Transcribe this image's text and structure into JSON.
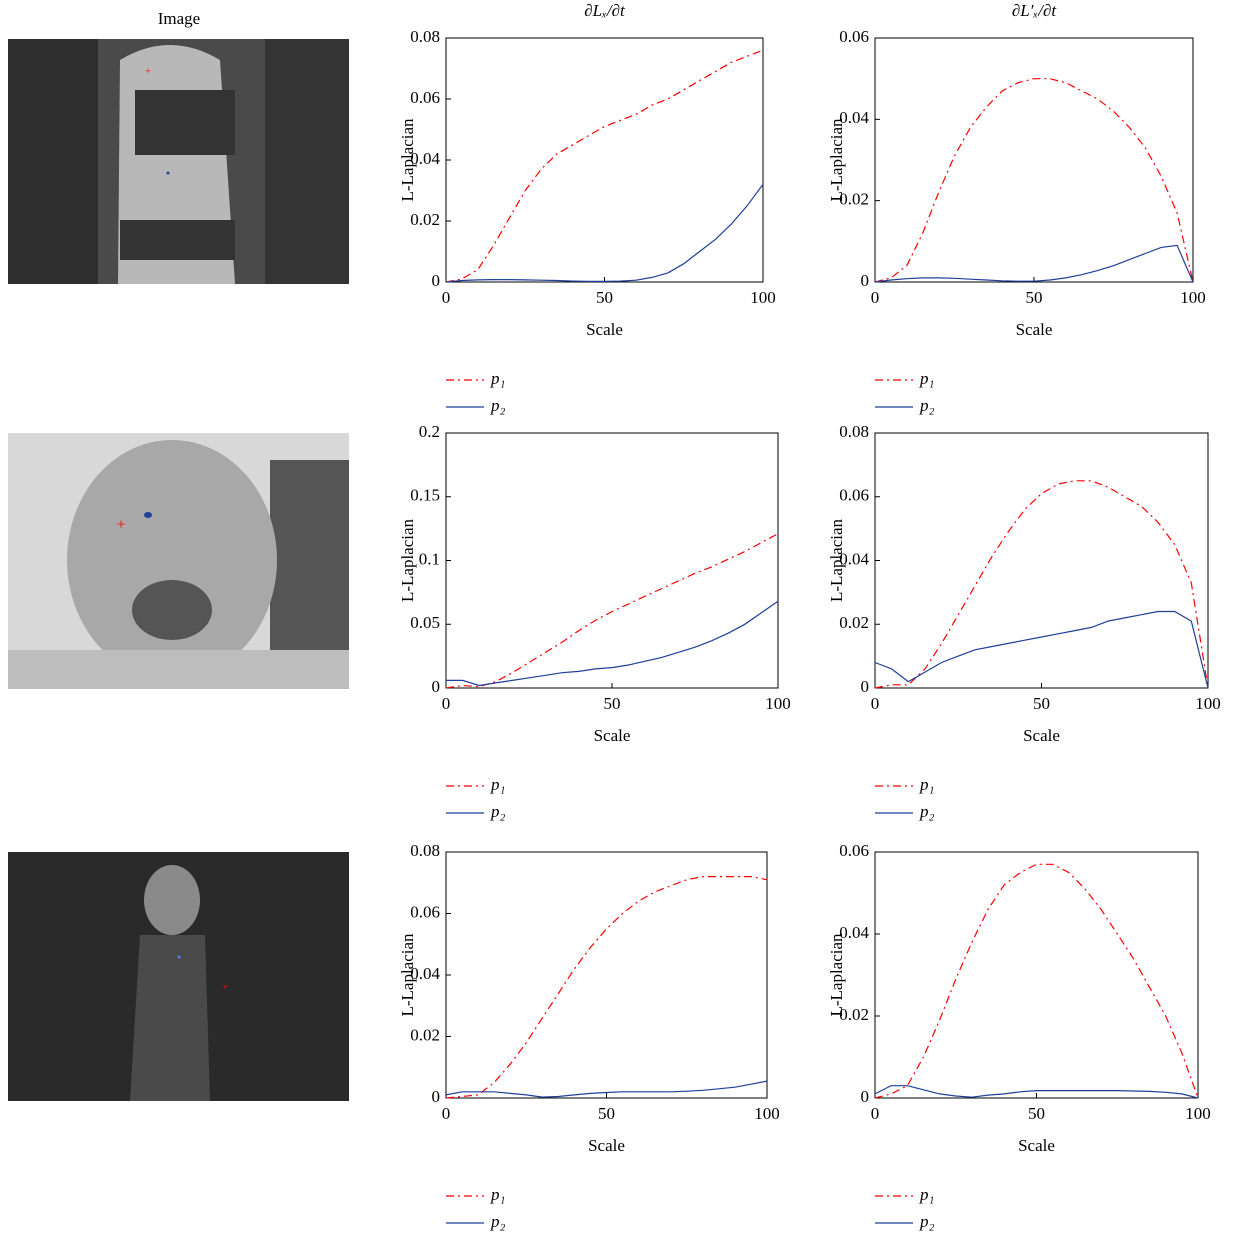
{
  "image_header": "Image",
  "chart_data": [
    {
      "type": "line",
      "title": "∂Lₓ/∂t",
      "xlabel": "Scale",
      "ylabel": "L-Laplacian",
      "x": [
        0,
        5,
        10,
        15,
        20,
        25,
        30,
        35,
        40,
        45,
        50,
        55,
        60,
        65,
        70,
        75,
        80,
        85,
        90,
        95,
        100
      ],
      "xlim": [
        0,
        100
      ],
      "xticks": [
        0,
        50,
        100
      ],
      "ylim": [
        0,
        0.08
      ],
      "yticks": [
        0,
        0.02,
        0.04,
        0.06,
        0.08
      ],
      "series": [
        {
          "name": "p₁",
          "color": "#ff0000",
          "linestyle": "dash-dot",
          "values": [
            0,
            0.001,
            0.004,
            0.012,
            0.021,
            0.03,
            0.037,
            0.042,
            0.045,
            0.048,
            0.051,
            0.053,
            0.055,
            0.058,
            0.06,
            0.063,
            0.066,
            0.069,
            0.072,
            0.074,
            0.076
          ]
        },
        {
          "name": "p₂",
          "color": "#1f3f99",
          "linestyle": "solid",
          "values": [
            0,
            0.0005,
            0.0007,
            0.0008,
            0.0008,
            0.0007,
            0.0006,
            0.0005,
            0.0003,
            0.0002,
            0.0002,
            0.0003,
            0.0006,
            0.0015,
            0.003,
            0.006,
            0.01,
            0.014,
            0.019,
            0.025,
            0.032
          ]
        }
      ]
    },
    {
      "type": "line",
      "title": "∂L′ₓ/∂t",
      "xlabel": "Scale",
      "ylabel": "L-Laplacian",
      "x": [
        0,
        5,
        10,
        15,
        20,
        25,
        30,
        35,
        40,
        45,
        50,
        55,
        60,
        65,
        70,
        75,
        80,
        85,
        90,
        95,
        100
      ],
      "xlim": [
        0,
        100
      ],
      "xticks": [
        0,
        50,
        100
      ],
      "ylim": [
        0,
        0.06
      ],
      "yticks": [
        0,
        0.02,
        0.04,
        0.06
      ],
      "series": [
        {
          "name": "p₁",
          "color": "#ff0000",
          "linestyle": "dash-dot",
          "values": [
            0,
            0.001,
            0.004,
            0.012,
            0.022,
            0.031,
            0.038,
            0.043,
            0.047,
            0.049,
            0.05,
            0.05,
            0.049,
            0.047,
            0.045,
            0.042,
            0.038,
            0.033,
            0.026,
            0.017,
            0
          ]
        },
        {
          "name": "p₂",
          "color": "#1f3f99",
          "linestyle": "solid",
          "values": [
            0,
            0.0005,
            0.0008,
            0.001,
            0.001,
            0.0009,
            0.0007,
            0.0005,
            0.0003,
            0.0002,
            0.0002,
            0.0005,
            0.001,
            0.0018,
            0.0028,
            0.004,
            0.0055,
            0.007,
            0.0085,
            0.009,
            0
          ]
        }
      ]
    },
    {
      "type": "line",
      "xlabel": "Scale",
      "ylabel": "L-Laplacian",
      "x": [
        0,
        5,
        10,
        15,
        20,
        25,
        30,
        35,
        40,
        45,
        50,
        55,
        60,
        65,
        70,
        75,
        80,
        85,
        90,
        95,
        100
      ],
      "xlim": [
        0,
        100
      ],
      "xticks": [
        0,
        50,
        100
      ],
      "ylim": [
        0,
        0.2
      ],
      "yticks": [
        0,
        0.05,
        0.1,
        0.15,
        0.2
      ],
      "series": [
        {
          "name": "p₁",
          "color": "#ff0000",
          "linestyle": "dash-dot",
          "values": [
            0,
            0.002,
            0.001,
            0.005,
            0.012,
            0.02,
            0.028,
            0.036,
            0.045,
            0.053,
            0.06,
            0.066,
            0.072,
            0.078,
            0.084,
            0.09,
            0.095,
            0.101,
            0.107,
            0.114,
            0.121
          ]
        },
        {
          "name": "p₂",
          "color": "#1f3f99",
          "linestyle": "solid",
          "values": [
            0.006,
            0.006,
            0.002,
            0.004,
            0.006,
            0.008,
            0.01,
            0.012,
            0.013,
            0.015,
            0.016,
            0.018,
            0.021,
            0.024,
            0.028,
            0.032,
            0.037,
            0.043,
            0.05,
            0.059,
            0.068
          ]
        }
      ]
    },
    {
      "type": "line",
      "xlabel": "Scale",
      "ylabel": "L-Laplacian",
      "x": [
        0,
        5,
        10,
        15,
        20,
        25,
        30,
        35,
        40,
        45,
        50,
        55,
        60,
        65,
        70,
        75,
        80,
        85,
        90,
        95,
        100
      ],
      "xlim": [
        0,
        100
      ],
      "xticks": [
        0,
        50,
        100
      ],
      "ylim": [
        0,
        0.08
      ],
      "yticks": [
        0,
        0.02,
        0.04,
        0.06,
        0.08
      ],
      "series": [
        {
          "name": "p₁",
          "color": "#ff0000",
          "linestyle": "dash-dot",
          "values": [
            0,
            0.001,
            0.001,
            0.006,
            0.014,
            0.023,
            0.032,
            0.041,
            0.049,
            0.056,
            0.061,
            0.064,
            0.065,
            0.065,
            0.063,
            0.06,
            0.057,
            0.052,
            0.045,
            0.033,
            0
          ]
        },
        {
          "name": "p₂",
          "color": "#1f3f99",
          "linestyle": "solid",
          "values": [
            0.008,
            0.006,
            0.002,
            0.005,
            0.008,
            0.01,
            0.012,
            0.013,
            0.014,
            0.015,
            0.016,
            0.017,
            0.018,
            0.019,
            0.021,
            0.022,
            0.023,
            0.024,
            0.024,
            0.021,
            0
          ]
        }
      ]
    },
    {
      "type": "line",
      "xlabel": "Scale",
      "ylabel": "L-Laplacian",
      "x": [
        0,
        5,
        10,
        15,
        20,
        25,
        30,
        35,
        40,
        45,
        50,
        55,
        60,
        65,
        70,
        75,
        80,
        85,
        90,
        95,
        100
      ],
      "xlim": [
        0,
        100
      ],
      "xticks": [
        0,
        50,
        100
      ],
      "ylim": [
        0,
        0.08
      ],
      "yticks": [
        0,
        0.02,
        0.04,
        0.06,
        0.08
      ],
      "series": [
        {
          "name": "p₁",
          "color": "#ff0000",
          "linestyle": "dash-dot",
          "values": [
            0,
            0.0005,
            0.001,
            0.005,
            0.011,
            0.018,
            0.026,
            0.034,
            0.042,
            0.049,
            0.055,
            0.06,
            0.064,
            0.067,
            0.069,
            0.071,
            0.072,
            0.072,
            0.072,
            0.072,
            0.071
          ]
        },
        {
          "name": "p₂",
          "color": "#1f3f99",
          "linestyle": "solid",
          "values": [
            0.001,
            0.002,
            0.002,
            0.002,
            0.0015,
            0.001,
            0.0003,
            0.0005,
            0.001,
            0.0015,
            0.0018,
            0.002,
            0.002,
            0.002,
            0.002,
            0.0022,
            0.0025,
            0.003,
            0.0035,
            0.0045,
            0.0055
          ]
        }
      ]
    },
    {
      "type": "line",
      "xlabel": "Scale",
      "ylabel": "L-Laplacian",
      "x": [
        0,
        5,
        10,
        15,
        20,
        25,
        30,
        35,
        40,
        45,
        50,
        55,
        60,
        65,
        70,
        75,
        80,
        85,
        90,
        95,
        100
      ],
      "xlim": [
        0,
        100
      ],
      "xticks": [
        0,
        50,
        100
      ],
      "ylim": [
        0,
        0.06
      ],
      "yticks": [
        0,
        0.02,
        0.04,
        0.06
      ],
      "series": [
        {
          "name": "p₁",
          "color": "#ff0000",
          "linestyle": "dash-dot",
          "values": [
            0,
            0.001,
            0.003,
            0.01,
            0.019,
            0.029,
            0.038,
            0.046,
            0.052,
            0.055,
            0.057,
            0.057,
            0.055,
            0.051,
            0.046,
            0.04,
            0.034,
            0.027,
            0.02,
            0.011,
            0
          ]
        },
        {
          "name": "p₂",
          "color": "#1f3f99",
          "linestyle": "solid",
          "values": [
            0.001,
            0.003,
            0.003,
            0.002,
            0.001,
            0.0005,
            0.0002,
            0.0007,
            0.001,
            0.0015,
            0.0018,
            0.0018,
            0.0018,
            0.0018,
            0.0018,
            0.0018,
            0.0017,
            0.0016,
            0.0014,
            0.001,
            0
          ]
        }
      ]
    }
  ]
}
